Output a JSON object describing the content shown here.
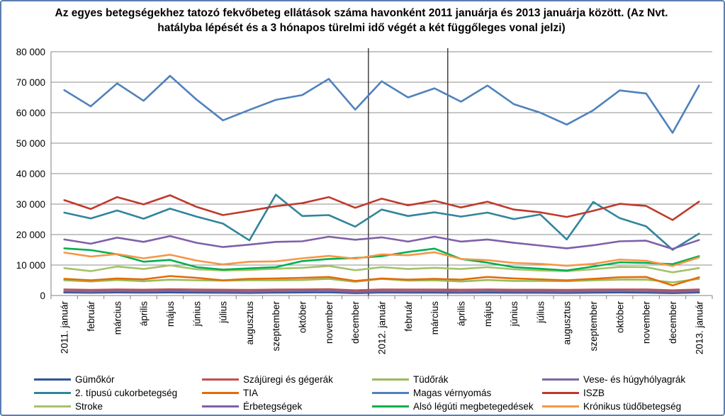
{
  "chart_data": {
    "type": "line",
    "title": "Az egyes betegségekhez tatozó fekvőbeteg ellátások száma havonként 2011 januárja és 2013 januárja között. (Az Nvt. hatályba lépését és a 3 hónapos türelmi idő végét a két függőleges vonal jelzi)",
    "xlabel": "",
    "ylabel": "",
    "ylim": [
      0,
      80000
    ],
    "yticks": [
      0,
      10000,
      20000,
      30000,
      40000,
      50000,
      60000,
      70000,
      80000
    ],
    "ytick_labels": [
      "0",
      "10 000",
      "20 000",
      "30 000",
      "40 000",
      "50 000",
      "60 000",
      "70 000",
      "80 000"
    ],
    "categories": [
      "2011. január",
      "február",
      "március",
      "április",
      "május",
      "június",
      "július",
      "augusztus",
      "szeptember",
      "október",
      "november",
      "december",
      "2012. január",
      "február",
      "március",
      "április",
      "május",
      "június",
      "július",
      "augusztus",
      "szeptember",
      "október",
      "november",
      "december",
      "2013. január"
    ],
    "vertical_markers": [
      "december",
      "március"
    ],
    "grid": "horizontal",
    "legend_position": "bottom",
    "series": [
      {
        "name": "Gümőkór",
        "color": "#2f5597",
        "values": [
          1000,
          900,
          1000,
          950,
          1000,
          950,
          900,
          850,
          950,
          1000,
          1050,
          800,
          1000,
          950,
          950,
          900,
          950,
          900,
          900,
          850,
          950,
          1000,
          950,
          800,
          1000
        ]
      },
      {
        "name": "Szájüregi és gégerák",
        "color": "#c0504d",
        "values": [
          2000,
          1850,
          2000,
          1900,
          2050,
          1950,
          1900,
          1850,
          1950,
          2000,
          2100,
          1700,
          2000,
          1950,
          1950,
          1900,
          2000,
          1900,
          1900,
          1850,
          1950,
          2000,
          2000,
          1700,
          2000
        ]
      },
      {
        "name": "Tüdőrák",
        "color": "#9bbb59",
        "values": [
          5000,
          4600,
          5100,
          4700,
          5200,
          5000,
          4900,
          5000,
          5000,
          5100,
          5500,
          4500,
          5500,
          4900,
          5000,
          4600,
          5100,
          4800,
          4800,
          4700,
          5000,
          5200,
          5200,
          4300,
          5500
        ]
      },
      {
        "name": "Vese- és húgyhólyagrák",
        "color": "#8064a2",
        "values": [
          1400,
          1300,
          1450,
          1350,
          1500,
          1400,
          1350,
          1300,
          1400,
          1450,
          1500,
          1200,
          1400,
          1350,
          1400,
          1300,
          1450,
          1350,
          1350,
          1300,
          1400,
          1450,
          1400,
          1200,
          1450
        ]
      },
      {
        "name": "2. típusú cukorbetegség",
        "color": "#31859c",
        "values": [
          27200,
          25300,
          27900,
          25200,
          28500,
          25900,
          23600,
          18100,
          33100,
          26100,
          26400,
          22600,
          28200,
          26100,
          27300,
          25900,
          27200,
          25100,
          26600,
          18400,
          30700,
          25400,
          22700,
          15000,
          20300
        ]
      },
      {
        "name": "TIA",
        "color": "#e46c0a",
        "values": [
          5500,
          5000,
          5600,
          5300,
          6400,
          5800,
          5000,
          5500,
          5600,
          5800,
          6100,
          4800,
          5600,
          5200,
          5500,
          5200,
          6100,
          5600,
          5300,
          5000,
          5500,
          6000,
          6100,
          3300,
          6000
        ]
      },
      {
        "name": "Magas vérnyomás",
        "color": "#4f81bd",
        "values": [
          67400,
          62100,
          69600,
          63900,
          72100,
          64300,
          57500,
          60900,
          64200,
          65800,
          71100,
          61000,
          70300,
          65000,
          68000,
          63600,
          68900,
          62800,
          60000,
          56100,
          60800,
          67300,
          66300,
          53400,
          68900
        ]
      },
      {
        "name": "ISZB",
        "color": "#c0392b",
        "values": [
          31300,
          28400,
          32300,
          29900,
          32900,
          29100,
          26400,
          27800,
          29300,
          30300,
          32300,
          28800,
          31800,
          29600,
          31100,
          28900,
          30800,
          28200,
          27300,
          25800,
          27800,
          30100,
          29400,
          24800,
          30800
        ]
      },
      {
        "name": "Stroke",
        "color": "#a5c26b",
        "values": [
          9000,
          8000,
          9500,
          8700,
          9900,
          8600,
          8200,
          8400,
          8800,
          9100,
          9700,
          8300,
          9300,
          8700,
          9100,
          8700,
          9300,
          8600,
          8200,
          8000,
          8600,
          9400,
          9300,
          7600,
          9000
        ]
      },
      {
        "name": "Érbetegségek",
        "color": "#7f5fa9",
        "values": [
          18400,
          17000,
          19000,
          17600,
          19500,
          17300,
          15900,
          16700,
          17600,
          17800,
          19300,
          18300,
          19100,
          17700,
          19300,
          17700,
          18400,
          17300,
          16400,
          15500,
          16500,
          17800,
          18000,
          15300,
          18200
        ]
      },
      {
        "name": "Alsó légúti megbetegedések",
        "color": "#00b050",
        "values": [
          15500,
          14900,
          13500,
          11100,
          11700,
          9300,
          8500,
          8900,
          9300,
          11300,
          12000,
          12300,
          12900,
          14300,
          15400,
          12000,
          10800,
          9300,
          8800,
          8200,
          9500,
          10900,
          10700,
          10300,
          12900
        ]
      },
      {
        "name": "Krónikus tüdőbetegség",
        "color": "#f79646",
        "values": [
          14100,
          12800,
          13600,
          12200,
          13400,
          11500,
          10200,
          11100,
          11200,
          12200,
          13000,
          12100,
          13500,
          13200,
          14200,
          12000,
          11600,
          10700,
          10400,
          9800,
          10400,
          11800,
          11400,
          9700,
          12500
        ]
      }
    ]
  }
}
